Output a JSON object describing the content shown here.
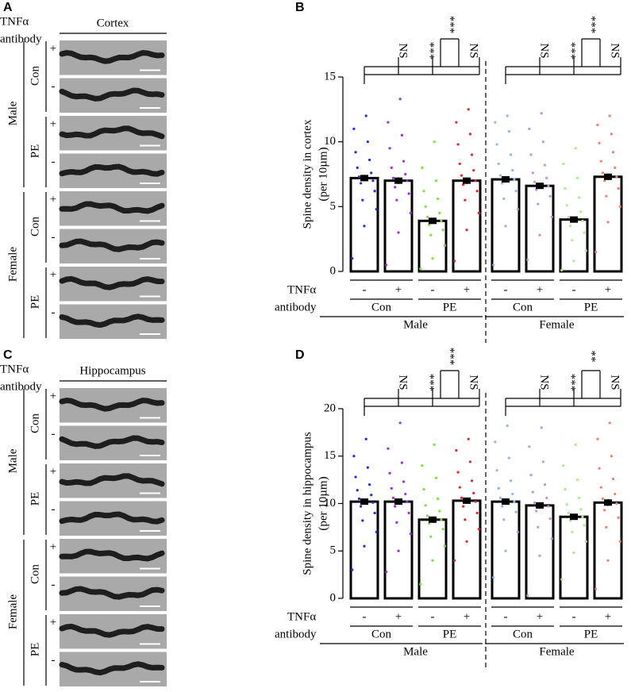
{
  "image_panels": [
    {
      "label": "A",
      "title": "Cortex",
      "treatment": [
        "TNFα",
        "antibody"
      ],
      "sexes": [
        "Male",
        "Female"
      ],
      "groups": [
        "Con",
        "PE"
      ],
      "signs": [
        "+",
        "-"
      ]
    },
    {
      "label": "C",
      "title": "Hippocampus",
      "treatment": [
        "TNFα",
        "antibody"
      ],
      "sexes": [
        "Male",
        "Female"
      ],
      "groups": [
        "Con",
        "PE"
      ],
      "signs": [
        "+",
        "-"
      ]
    }
  ],
  "chart_data": [
    {
      "type": "bar",
      "label": "B",
      "ylabel": [
        "Spine density in cortex",
        "(per 10µm)"
      ],
      "row_labels": [
        "TNFα",
        "antibody"
      ],
      "categories": [
        "-",
        "+",
        "-",
        "+",
        "-",
        "+",
        "-",
        "+"
      ],
      "groups": [
        "Con",
        "PE",
        "Con",
        "PE"
      ],
      "sexes": [
        "Male",
        "Female"
      ],
      "values": [
        7.2,
        7.0,
        3.9,
        7.0,
        7.1,
        6.6,
        4.0,
        7.3
      ],
      "errors": [
        0.25,
        0.25,
        0.2,
        0.25,
        0.25,
        0.2,
        0.2,
        0.25
      ],
      "colors": [
        "#1a2fd6",
        "#9b30d9",
        "#7ee040",
        "#e0282a",
        "#8fb4e8",
        "#c490e0",
        "#a8ec8c",
        "#f0806a"
      ],
      "points": [
        [
          1.0,
          3.5,
          4.8,
          5.5,
          6.2,
          6.8,
          7.0,
          7.3,
          7.6,
          8.0,
          8.6,
          9.2,
          10.0,
          11.0,
          12.0
        ],
        [
          0.5,
          3.0,
          4.5,
          5.5,
          6.0,
          6.5,
          7.0,
          7.2,
          7.5,
          8.0,
          8.5,
          9.5,
          10.5,
          11.5,
          13.3
        ],
        [
          0.2,
          1.0,
          2.0,
          2.8,
          3.2,
          3.6,
          3.9,
          4.2,
          4.5,
          5.0,
          5.6,
          6.2,
          7.0,
          8.0,
          10.0
        ],
        [
          0.8,
          3.2,
          4.5,
          5.5,
          6.2,
          6.7,
          7.0,
          7.4,
          7.8,
          8.3,
          9.0,
          9.8,
          10.6,
          11.5,
          12.5
        ],
        [
          0.5,
          3.5,
          4.8,
          5.6,
          6.2,
          6.8,
          7.1,
          7.4,
          7.8,
          8.3,
          9.0,
          9.8,
          10.8,
          11.5,
          12.0
        ],
        [
          0.9,
          2.8,
          4.2,
          5.2,
          5.8,
          6.3,
          6.6,
          6.9,
          7.2,
          7.6,
          8.2,
          9.0,
          10.0,
          11.0,
          12.2
        ],
        [
          0.1,
          0.8,
          1.6,
          2.4,
          3.0,
          3.5,
          3.9,
          4.2,
          4.6,
          5.1,
          5.7,
          6.4,
          7.2,
          8.3,
          9.5
        ],
        [
          1.5,
          3.8,
          5.0,
          5.8,
          6.4,
          7.0,
          7.3,
          7.6,
          8.0,
          8.5,
          9.2,
          9.9,
          10.6,
          11.3,
          12.0
        ]
      ],
      "ylim": [
        0,
        15
      ],
      "yticks": [
        0,
        5,
        10,
        15
      ],
      "annotations": [
        "NS",
        "***",
        "***",
        "NS",
        "NS",
        "***",
        "***",
        "NS"
      ]
    },
    {
      "type": "bar",
      "label": "D",
      "ylabel": [
        "Spine density in hippocampus",
        "(per 10µm)"
      ],
      "row_labels": [
        "TNFα",
        "antibody"
      ],
      "categories": [
        "-",
        "+",
        "-",
        "+",
        "-",
        "+",
        "-",
        "+"
      ],
      "groups": [
        "Con",
        "PE",
        "Con",
        "PE"
      ],
      "sexes": [
        "Male",
        "Female"
      ],
      "values": [
        10.2,
        10.2,
        8.3,
        10.3,
        10.2,
        9.8,
        8.6,
        10.1
      ],
      "errors": [
        0.3,
        0.3,
        0.3,
        0.3,
        0.3,
        0.3,
        0.3,
        0.35
      ],
      "colors": [
        "#1a2fd6",
        "#9b30d9",
        "#7ee040",
        "#e0282a",
        "#8fb4e8",
        "#c490e0",
        "#a8ec8c",
        "#f0806a"
      ],
      "points": [
        [
          3.0,
          5.5,
          7.0,
          8.2,
          9.0,
          9.7,
          10.1,
          10.5,
          10.9,
          11.4,
          12.0,
          12.8,
          13.8,
          15.0,
          16.8
        ],
        [
          2.8,
          5.0,
          6.8,
          8.0,
          9.0,
          9.7,
          10.2,
          10.6,
          11.0,
          11.6,
          12.3,
          13.2,
          14.3,
          15.8,
          18.5
        ],
        [
          1.5,
          4.0,
          5.5,
          6.5,
          7.3,
          7.9,
          8.3,
          8.7,
          9.2,
          9.8,
          10.5,
          11.5,
          12.7,
          14.0,
          16.2
        ],
        [
          4.0,
          6.0,
          7.3,
          8.3,
          9.0,
          9.7,
          10.2,
          10.6,
          11.1,
          11.7,
          12.4,
          13.3,
          14.4,
          15.6,
          16.8
        ],
        [
          2.2,
          5.0,
          7.0,
          8.3,
          9.1,
          9.7,
          10.2,
          10.6,
          11.0,
          11.6,
          12.4,
          13.5,
          14.8,
          16.5,
          18.2
        ],
        [
          0.3,
          4.5,
          6.3,
          7.5,
          8.4,
          9.2,
          9.7,
          10.1,
          10.6,
          11.2,
          12.0,
          13.0,
          14.4,
          16.0,
          18.0
        ],
        [
          2.0,
          4.8,
          6.0,
          7.0,
          7.7,
          8.2,
          8.6,
          9.0,
          9.4,
          9.9,
          10.6,
          11.5,
          12.5,
          14.0,
          16.2
        ],
        [
          1.0,
          4.0,
          6.0,
          7.5,
          8.5,
          9.3,
          10.0,
          10.5,
          11.0,
          11.7,
          12.6,
          13.7,
          15.0,
          16.8,
          18.5
        ]
      ],
      "ylim": [
        0,
        20
      ],
      "yticks": [
        0,
        5,
        10,
        15,
        20
      ],
      "annotations": [
        "NS",
        "***",
        "***",
        "NS",
        "NS",
        "***",
        "**",
        "NS"
      ]
    }
  ]
}
